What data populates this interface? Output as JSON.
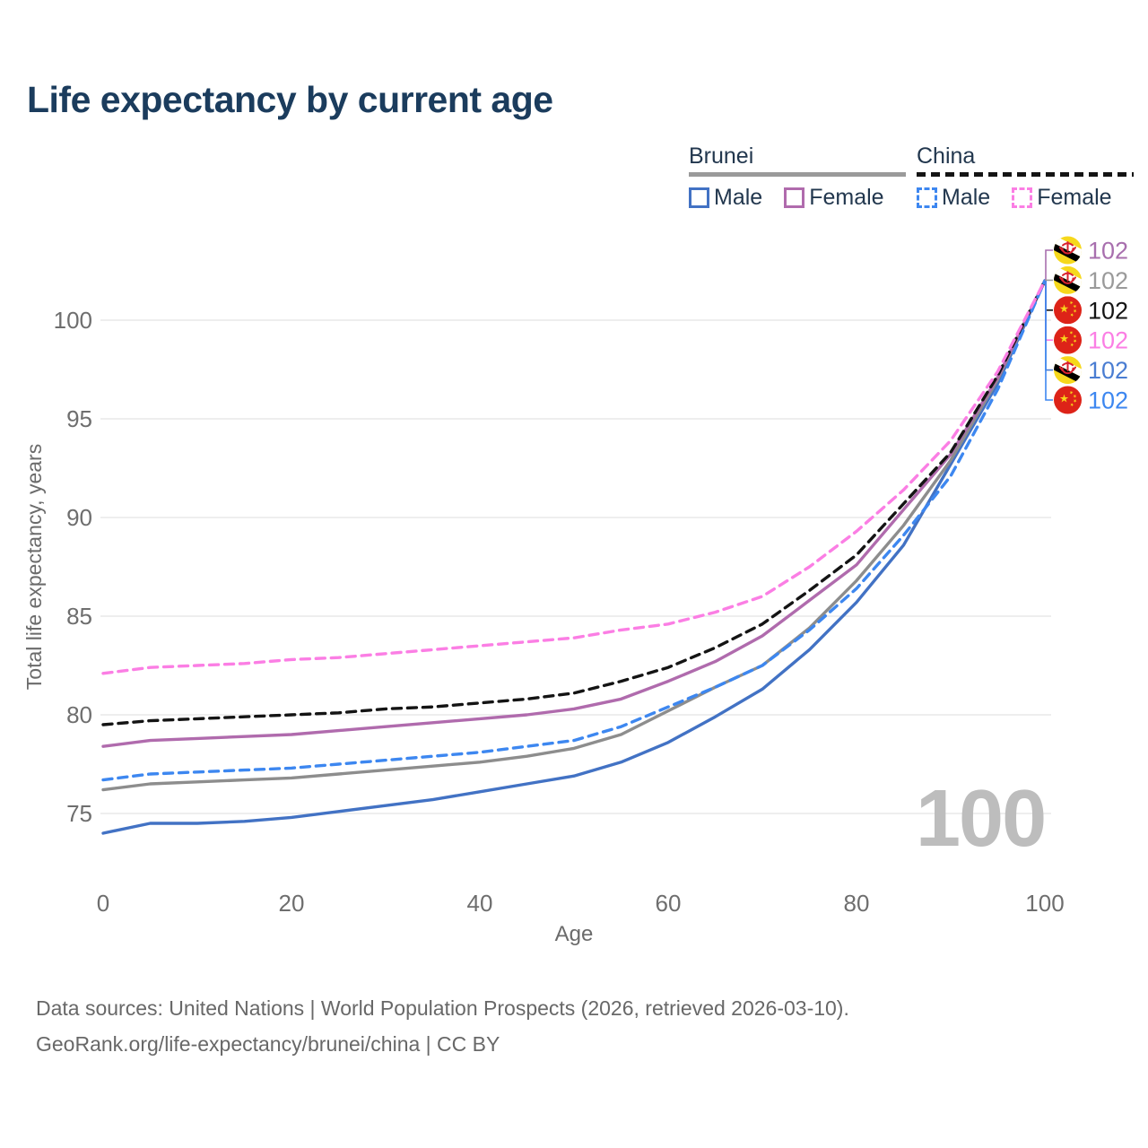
{
  "title": "Life expectancy by current age",
  "watermark": "100",
  "legend": {
    "groups": [
      {
        "label": "Brunei",
        "style": "solid",
        "color": "#9a9a9a",
        "items": [
          {
            "label": "Male",
            "color": "#4272c4",
            "dashed": false
          },
          {
            "label": "Female",
            "color": "#b06bad",
            "dashed": false
          }
        ]
      },
      {
        "label": "China",
        "style": "dashed",
        "color": "#141414",
        "items": [
          {
            "label": "Male",
            "color": "#3d87f0",
            "dashed": true
          },
          {
            "label": "Female",
            "color": "#fb7ee4",
            "dashed": true
          }
        ]
      }
    ]
  },
  "footer": {
    "line1": "Data sources: United Nations | World Population Prospects (2026, retrieved 2026-03-10).",
    "line2": "GeoRank.org/life-expectancy/brunei/china | CC BY"
  },
  "chart_data": {
    "type": "line",
    "title": "Life expectancy by current age",
    "xlabel": "Age",
    "ylabel": "Total life expectancy, years",
    "xticks": [
      0,
      20,
      40,
      60,
      80,
      100
    ],
    "yticks": [
      75,
      80,
      85,
      90,
      95,
      100
    ],
    "xlim": [
      0,
      100
    ],
    "ylim": [
      73,
      103
    ],
    "grid": "horizontal",
    "legend_position": "top-right",
    "x": [
      0,
      5,
      10,
      15,
      20,
      25,
      30,
      35,
      40,
      45,
      50,
      55,
      60,
      65,
      70,
      75,
      80,
      85,
      90,
      95,
      100
    ],
    "series": [
      {
        "id": "brunei-male",
        "name": "Brunei Male",
        "country": "Brunei",
        "sex": "Male",
        "color": "#4272c4",
        "dashed": false,
        "values": [
          74.0,
          74.5,
          74.5,
          74.6,
          74.8,
          75.1,
          75.4,
          75.7,
          76.1,
          76.5,
          76.9,
          77.6,
          78.6,
          79.9,
          81.3,
          83.3,
          85.7,
          88.6,
          92.7,
          96.8,
          102
        ]
      },
      {
        "id": "brunei-all",
        "name": "Brunei",
        "country": "Brunei",
        "sex": "Both",
        "color": "#8d8d8d",
        "dashed": false,
        "values": [
          76.2,
          76.5,
          76.6,
          76.7,
          76.8,
          77.0,
          77.2,
          77.4,
          77.6,
          77.9,
          78.3,
          79.0,
          80.2,
          81.4,
          82.5,
          84.4,
          86.8,
          89.6,
          92.9,
          97.0,
          102
        ]
      },
      {
        "id": "brunei-female",
        "name": "Brunei Female",
        "country": "Brunei",
        "sex": "Female",
        "color": "#b06bad",
        "dashed": false,
        "values": [
          78.4,
          78.7,
          78.8,
          78.9,
          79.0,
          79.2,
          79.4,
          79.6,
          79.8,
          80.0,
          80.3,
          80.8,
          81.7,
          82.7,
          84.0,
          85.8,
          87.6,
          90.4,
          93.2,
          97.1,
          102
        ]
      },
      {
        "id": "china-all",
        "name": "China",
        "country": "China",
        "sex": "Both",
        "color": "#141414",
        "dashed": true,
        "values": [
          79.5,
          79.7,
          79.8,
          79.9,
          80.0,
          80.1,
          80.3,
          80.4,
          80.6,
          80.8,
          81.1,
          81.7,
          82.4,
          83.4,
          84.6,
          86.3,
          88.1,
          90.7,
          93.3,
          97.2,
          102
        ]
      },
      {
        "id": "china-male",
        "name": "China Male",
        "country": "China",
        "sex": "Male",
        "color": "#3d87f0",
        "dashed": true,
        "values": [
          76.7,
          77.0,
          77.1,
          77.2,
          77.3,
          77.5,
          77.7,
          77.9,
          78.1,
          78.4,
          78.7,
          79.4,
          80.4,
          81.4,
          82.5,
          84.3,
          86.4,
          89.1,
          92.1,
          96.5,
          102
        ]
      },
      {
        "id": "china-female",
        "name": "China Female",
        "country": "China",
        "sex": "Female",
        "color": "#fb7ee4",
        "dashed": true,
        "values": [
          82.1,
          82.4,
          82.5,
          82.6,
          82.8,
          82.9,
          83.1,
          83.3,
          83.5,
          83.7,
          83.9,
          84.3,
          84.6,
          85.2,
          86.0,
          87.5,
          89.3,
          91.4,
          93.9,
          97.4,
          102
        ]
      }
    ],
    "end_labels": [
      {
        "series": "brunei-female",
        "flag": "brunei",
        "value": "102",
        "color": "#a86fae"
      },
      {
        "series": "brunei-all",
        "flag": "brunei",
        "value": "102",
        "color": "#9a9a9a"
      },
      {
        "series": "china-all",
        "flag": "china",
        "value": "102",
        "color": "#141414"
      },
      {
        "series": "china-female",
        "flag": "china",
        "value": "102",
        "color": "#fb7ee4"
      },
      {
        "series": "brunei-male",
        "flag": "brunei",
        "value": "102",
        "color": "#4a7dd2"
      },
      {
        "series": "china-male",
        "flag": "china",
        "value": "102",
        "color": "#3d87f0"
      }
    ]
  }
}
